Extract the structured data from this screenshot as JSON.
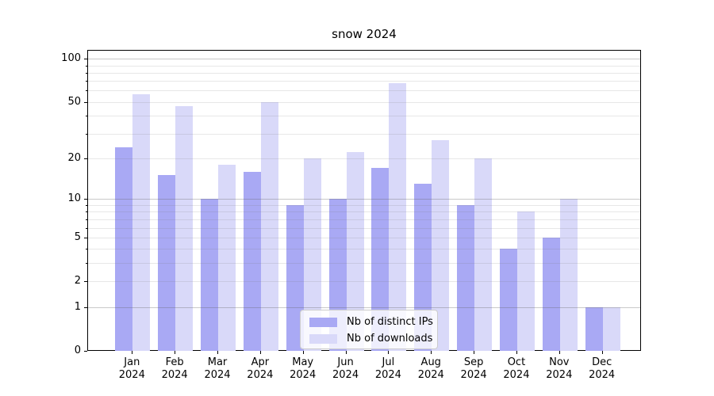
{
  "figure": {
    "title": "snow 2024"
  },
  "chart_data": {
    "type": "bar",
    "title": "snow 2024",
    "categories": [
      "Jan 2024",
      "Feb 2024",
      "Mar 2024",
      "Apr 2024",
      "May 2024",
      "Jun 2024",
      "Jul 2024",
      "Aug 2024",
      "Sep 2024",
      "Oct 2024",
      "Nov 2024",
      "Dec 2024"
    ],
    "series": [
      {
        "name": "Nb of distinct IPs",
        "color": "#a9a9f4",
        "values": [
          24,
          15,
          10,
          16,
          9,
          10,
          17,
          13,
          9,
          4,
          5,
          1
        ]
      },
      {
        "name": "Nb of downloads",
        "color": "#d9d9f9",
        "values": [
          57,
          47,
          18,
          50,
          20,
          22,
          68,
          27,
          20,
          8,
          10,
          1
        ]
      }
    ],
    "xlabel": "",
    "ylabel": "",
    "y_scale": "log10(1+y)",
    "ylim": [
      0,
      115
    ],
    "y_ticks": [
      0,
      1,
      2,
      5,
      10,
      20,
      50,
      100
    ],
    "y_tick_labels": [
      "0",
      "1",
      "2",
      "5",
      "10",
      "20",
      "50",
      "100"
    ],
    "major_grid_values": [
      1,
      10,
      100
    ],
    "minor_grid_values": [
      2,
      3,
      4,
      5,
      6,
      7,
      8,
      9,
      20,
      30,
      40,
      50,
      60,
      70,
      80,
      90
    ],
    "grid": "horizontal, major darker than minor",
    "legend": {
      "position": "lower center inside axes",
      "items": [
        "Nb of distinct IPs",
        "Nb of downloads"
      ]
    },
    "colors": {
      "bar_distinct_ips": "#a9a9f4",
      "bar_downloads": "#d9d9f9",
      "axis": "#000000",
      "major_grid": "#c9c9c9",
      "minor_grid": "#e7e7e7",
      "background": "#ffffff"
    }
  }
}
